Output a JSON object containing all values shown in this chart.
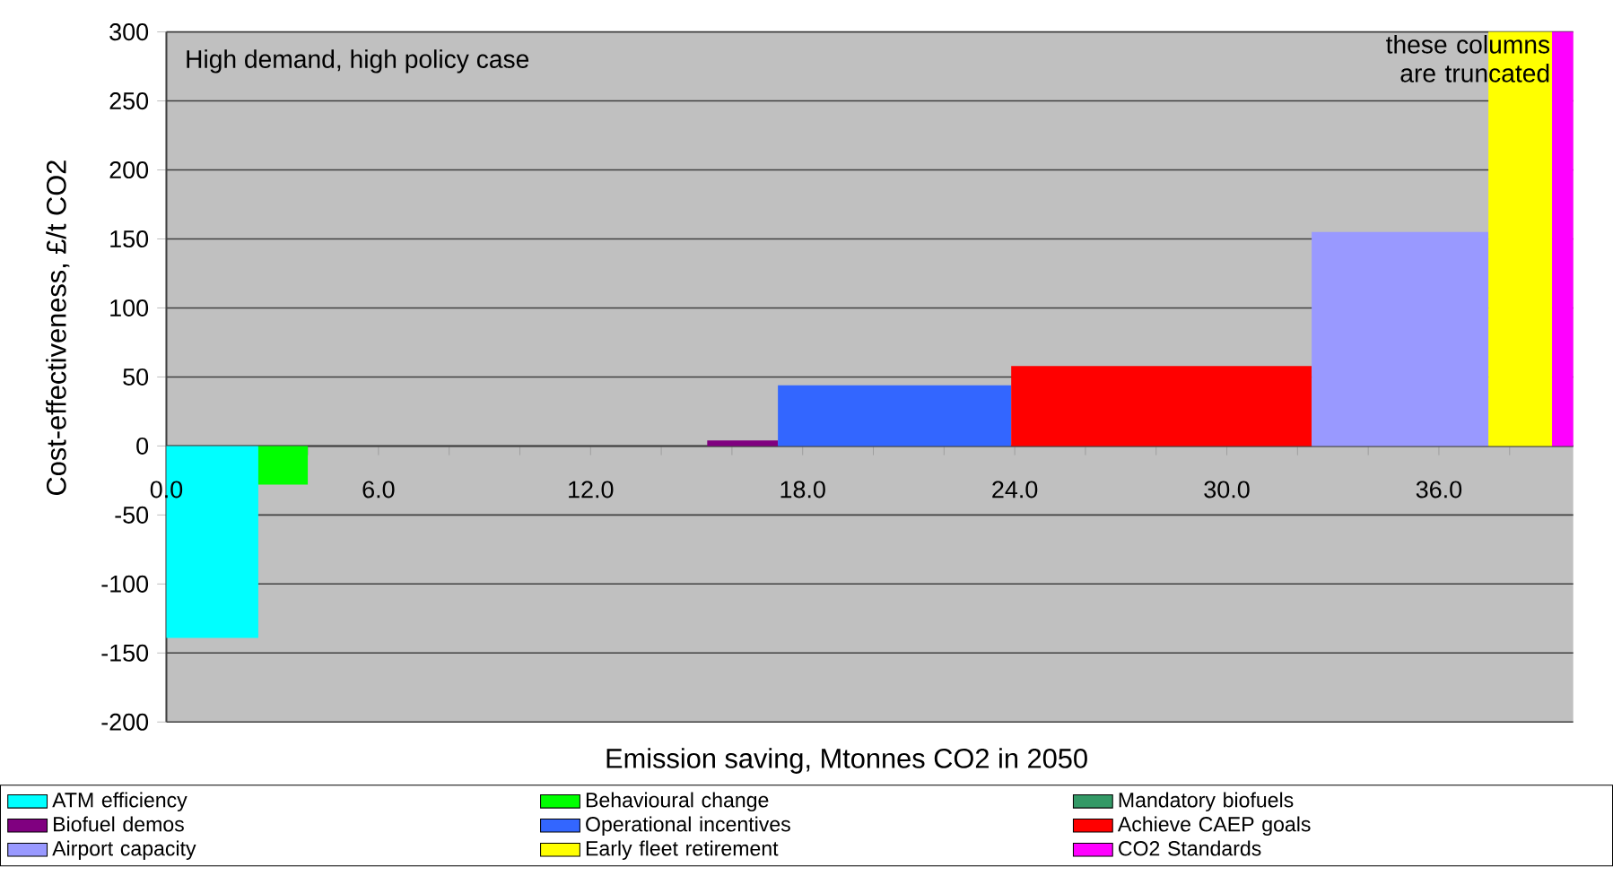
{
  "chart_data": {
    "type": "area",
    "xlabel": "Emission saving, Mtonnes CO2 in 2050",
    "ylabel": "Cost-effectiveness, £/t CO2",
    "annotations": [
      "High demand, high policy case",
      "these columns are truncated"
    ],
    "series": [
      {
        "name": "ATM efficiency",
        "color": "#00ffff",
        "x": [
          0,
          2.6
        ],
        "values": [
          -139,
          -139
        ]
      },
      {
        "name": "Behavioural change",
        "color": "#00ff00",
        "x": [
          2.6,
          4.0
        ],
        "values": [
          -28,
          -28
        ]
      },
      {
        "name": "Mandatory biofuels",
        "color": "#339966"
      },
      {
        "name": "Biofuel demos",
        "color": "#800080",
        "x": [
          15.3,
          17.3
        ],
        "values": [
          4,
          4
        ]
      },
      {
        "name": "Operational incentives",
        "color": "#3366ff",
        "x": [
          17.3,
          23.9
        ],
        "values": [
          44,
          44
        ]
      },
      {
        "name": "Achieve CAEP goals",
        "color": "#ff0000",
        "x": [
          23.9,
          32.4
        ],
        "values": [
          58,
          58
        ]
      },
      {
        "name": "Airport capacity",
        "color": "#9999ff",
        "x": [
          32.4,
          37.4
        ],
        "values": [
          155,
          155
        ]
      },
      {
        "name": "Early fleet retirement",
        "color": "#ffff00",
        "x": [
          37.4,
          39.2
        ],
        "values": [
          300,
          300
        ]
      },
      {
        "name": "CO2 Standards",
        "color": "#ff00ff",
        "x": [
          39.2,
          39.8
        ],
        "values": [
          300,
          300
        ]
      }
    ],
    "xlim": [
      0,
      39.8
    ],
    "xticks": [
      {
        "value": 0,
        "label": "0.0"
      },
      {
        "value": 2,
        "label": null
      },
      {
        "value": 4,
        "label": null
      },
      {
        "value": 6,
        "label": "6.0"
      },
      {
        "value": 8,
        "label": null
      },
      {
        "value": 10,
        "label": null
      },
      {
        "value": 12,
        "label": "12.0"
      },
      {
        "value": 14,
        "label": null
      },
      {
        "value": 16,
        "label": null
      },
      {
        "value": 18,
        "label": "18.0"
      },
      {
        "value": 20,
        "label": null
      },
      {
        "value": 22,
        "label": null
      },
      {
        "value": 24,
        "label": "24.0"
      },
      {
        "value": 26,
        "label": null
      },
      {
        "value": 28,
        "label": null
      },
      {
        "value": 30,
        "label": "30.0"
      },
      {
        "value": 32,
        "label": null
      },
      {
        "value": 34,
        "label": null
      },
      {
        "value": 36,
        "label": "36.0"
      },
      {
        "value": 38,
        "label": null
      }
    ],
    "ylim": [
      -200,
      300
    ],
    "yticks": [
      -200,
      -150,
      -100,
      -50,
      0,
      50,
      100,
      150,
      200,
      250,
      300
    ],
    "grid": "y",
    "legend": "bottom",
    "marker": "none"
  }
}
